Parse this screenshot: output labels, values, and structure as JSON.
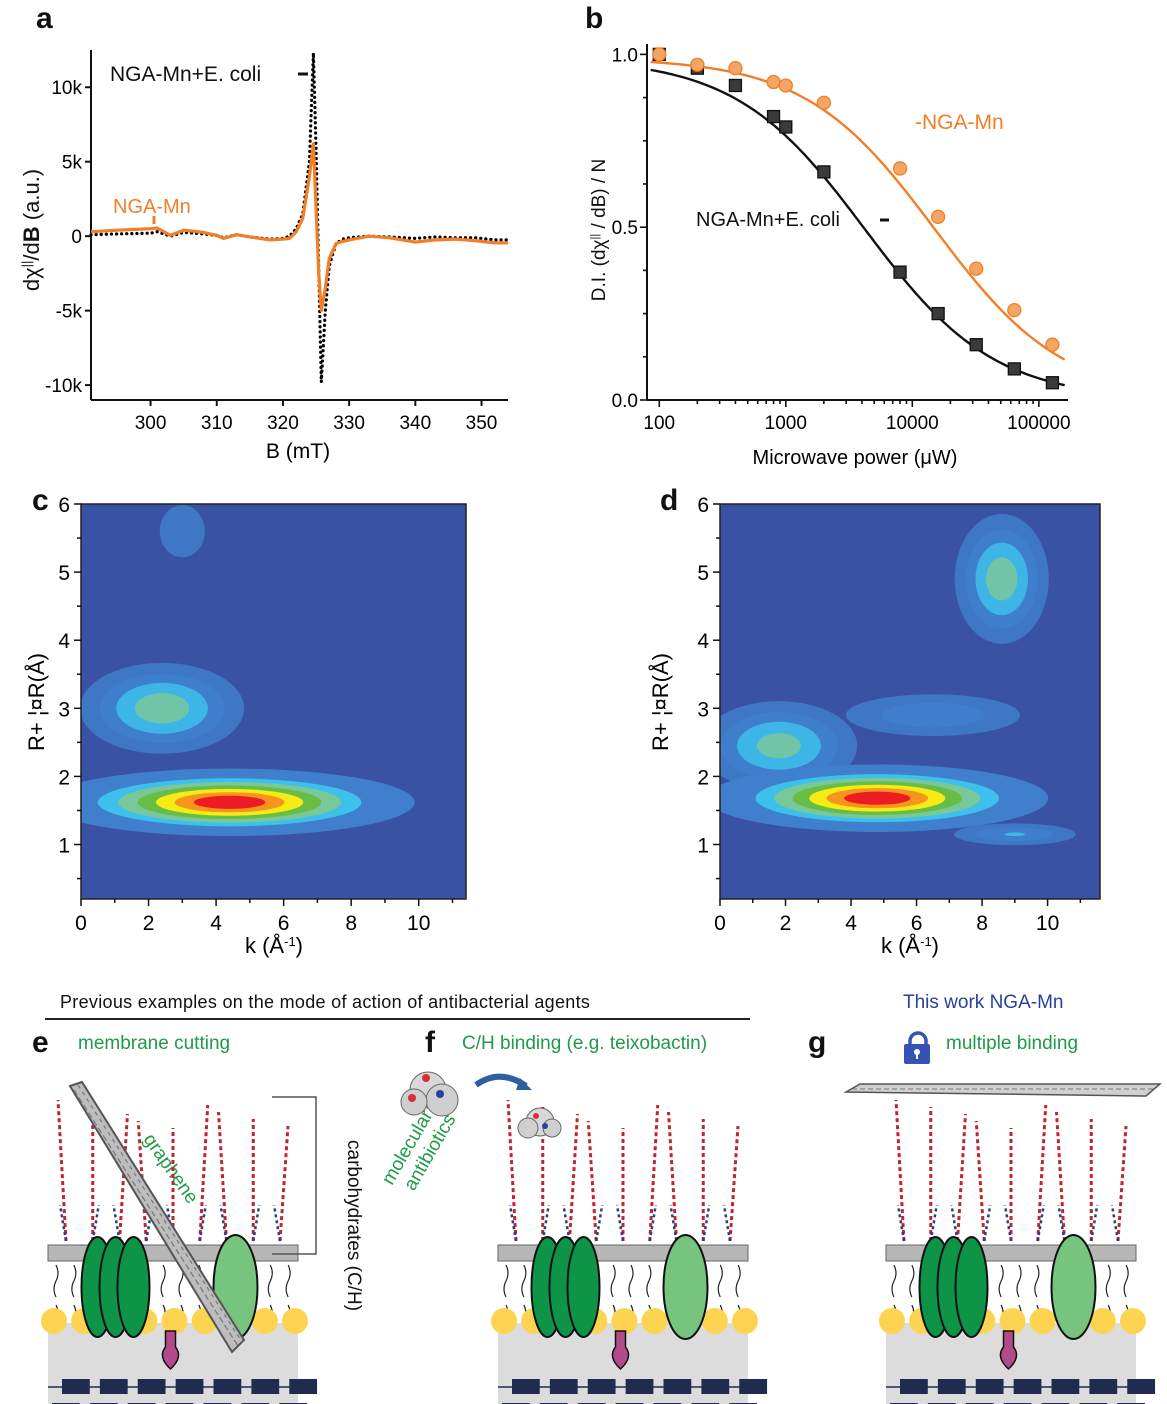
{
  "panels": {
    "a": "a",
    "b": "b",
    "c": "c",
    "d": "d",
    "e": "e",
    "f": "f",
    "g": "g"
  },
  "chart_data": [
    {
      "id": "a",
      "type": "line",
      "title": "",
      "xlabel": "B (mT)",
      "ylabel": "dχ||/dB (a.u.)",
      "xlim": [
        291,
        354
      ],
      "ylim": [
        -11000,
        12500
      ],
      "xticks": [
        300,
        310,
        320,
        330,
        340,
        350
      ],
      "xtick_labels": [
        "300",
        "310",
        "320",
        "330",
        "340",
        "350"
      ],
      "yticks": [
        -10000,
        -5000,
        0,
        5000,
        10000
      ],
      "ytick_labels": [
        "-10k",
        "-5k",
        "0",
        "5k",
        "10k"
      ],
      "series": [
        {
          "name": "NGA-Mn+E. coli",
          "label": "NGA-Mn+E. coli",
          "style": "dotted",
          "color": "#000000",
          "x": [
            291,
            295,
            300,
            301,
            303,
            305,
            308,
            310,
            311,
            313,
            315,
            318,
            320,
            321,
            322,
            323,
            324,
            324.6,
            325,
            325.4,
            325.8,
            326.4,
            327,
            328,
            329,
            330,
            333,
            336,
            340,
            343,
            346,
            349,
            352,
            354
          ],
          "y": [
            100,
            150,
            200,
            300,
            0,
            250,
            150,
            50,
            -100,
            100,
            -50,
            -200,
            -150,
            0,
            500,
            1500,
            5000,
            12300,
            6000,
            -2000,
            -9800,
            -5000,
            -2000,
            -500,
            -200,
            -100,
            0,
            -50,
            -150,
            -50,
            -100,
            -100,
            -250,
            -250
          ]
        },
        {
          "name": "NGA-Mn",
          "label": "NGA-Mn",
          "style": "solid",
          "color": "#f07f28",
          "x": [
            291,
            295,
            300,
            301,
            303,
            305,
            308,
            310,
            311,
            313,
            315,
            318,
            320,
            321,
            322,
            323,
            324,
            324.6,
            325,
            325.4,
            325.8,
            326.4,
            327,
            328,
            329,
            330,
            333,
            336,
            340,
            343,
            346,
            349,
            352,
            354
          ],
          "y": [
            300,
            400,
            500,
            550,
            50,
            400,
            250,
            50,
            -150,
            100,
            -50,
            -250,
            -200,
            -150,
            300,
            1200,
            4000,
            6200,
            2000,
            -2500,
            -5000,
            -3500,
            -1500,
            -500,
            -350,
            -250,
            0,
            -100,
            -400,
            -250,
            -200,
            -300,
            -450,
            -450
          ]
        }
      ]
    },
    {
      "id": "b",
      "type": "scatter",
      "title": "",
      "xlabel": "Microwave power (μW)",
      "ylabel": "D.I. (dχ|| / dB) / N",
      "xscale": "log",
      "xlim": [
        80,
        170000
      ],
      "ylim": [
        0,
        1.03
      ],
      "xticks": [
        100,
        1000,
        10000,
        100000
      ],
      "xtick_labels": [
        "100",
        "1000",
        "10000",
        "100000"
      ],
      "yticks": [
        0,
        0.5,
        1.0
      ],
      "ytick_labels": [
        "0.0",
        "0.5",
        "1.0"
      ],
      "series": [
        {
          "name": "NGA-Mn",
          "label": "-NGA-Mn",
          "marker": "circle",
          "color": "#f07f28",
          "fill": "#f5a563",
          "x": [
            100,
            200,
            400,
            800,
            1000,
            2000,
            8000,
            16000,
            32000,
            64000,
            128000
          ],
          "y": [
            1.0,
            0.97,
            0.96,
            0.92,
            0.91,
            0.86,
            0.67,
            0.53,
            0.38,
            0.26,
            0.16
          ],
          "fit": {
            "x0": 15000,
            "slope": 0.85,
            "top": 0.99
          }
        },
        {
          "name": "NGA-Mn+E. coli",
          "label": "NGA-Mn+E. coli",
          "marker": "square",
          "color": "#000000",
          "fill": "#3a3a3a",
          "x": [
            100,
            200,
            400,
            800,
            1000,
            2000,
            8000,
            16000,
            32000,
            64000,
            128000
          ],
          "y": [
            1.0,
            0.96,
            0.91,
            0.82,
            0.79,
            0.66,
            0.37,
            0.25,
            0.16,
            0.09,
            0.05
          ],
          "fit": {
            "x0": 4200,
            "slope": 0.85,
            "top": 0.99
          }
        }
      ]
    },
    {
      "id": "c",
      "type": "heatmap",
      "title": "",
      "xlabel": "k (Å-1)",
      "ylabel": "R+ ¦¤R(Å)",
      "xlim": [
        0,
        11.4
      ],
      "ylim": [
        0.2,
        6
      ],
      "xticks": [
        0,
        2,
        4,
        6,
        8,
        10
      ],
      "xtick_labels": [
        "0",
        "2",
        "4",
        "6",
        "8",
        "10"
      ],
      "yticks": [
        1,
        2,
        3,
        4,
        5,
        6
      ],
      "ytick_labels": [
        "1",
        "2",
        "3",
        "4",
        "5",
        "6"
      ],
      "colormap": [
        "#3a52a3",
        "#3f7fcb",
        "#3dc0ec",
        "#78c89a",
        "#68bd45",
        "#f6eb14",
        "#f7941d",
        "#ed1c24"
      ],
      "features": [
        {
          "k": 4.4,
          "R": 1.62,
          "sk": 4.2,
          "sR": 0.22,
          "amp": 1.0
        },
        {
          "k": 2.4,
          "R": 3.0,
          "sk": 2.2,
          "sR": 0.35,
          "amp": 0.45
        },
        {
          "k": 3.0,
          "R": 5.6,
          "sk": 1.2,
          "sR": 0.4,
          "amp": 0.1
        }
      ]
    },
    {
      "id": "d",
      "type": "heatmap",
      "title": "",
      "xlabel": "k (Å-1)",
      "ylabel": "R+ ¦¤R(Å)",
      "xlim": [
        0,
        11.6
      ],
      "ylim": [
        0.2,
        6
      ],
      "xticks": [
        0,
        2,
        4,
        6,
        8,
        10
      ],
      "xtick_labels": [
        "0",
        "2",
        "4",
        "6",
        "8",
        "10"
      ],
      "yticks": [
        1,
        2,
        3,
        4,
        5,
        6
      ],
      "ytick_labels": [
        "1",
        "2",
        "3",
        "4",
        "5",
        "6"
      ],
      "colormap": [
        "#3a52a3",
        "#3f7fcb",
        "#3dc0ec",
        "#78c89a",
        "#68bd45",
        "#f6eb14",
        "#f7941d",
        "#ed1c24"
      ],
      "features": [
        {
          "k": 4.8,
          "R": 1.68,
          "sk": 4.0,
          "sR": 0.22,
          "amp": 1.0
        },
        {
          "k": 1.8,
          "R": 2.45,
          "sk": 2.2,
          "sR": 0.35,
          "amp": 0.42
        },
        {
          "k": 8.6,
          "R": 4.9,
          "sk": 1.3,
          "sR": 0.5,
          "amp": 0.45
        },
        {
          "k": 6.5,
          "R": 2.9,
          "sk": 3.0,
          "sR": 0.2,
          "amp": 0.22
        },
        {
          "k": 9.0,
          "R": 1.15,
          "sk": 2.0,
          "sR": 0.1,
          "amp": 0.25
        }
      ]
    }
  ],
  "annotations": {
    "a_label_black": "NGA-Mn+E. coli",
    "a_label_orange": "NGA-Mn",
    "b_label_orange": "-NGA-Mn",
    "b_label_black": "NGA-Mn+E. coli"
  },
  "schematic": {
    "header": "Previous examples on the mode of action of antibacterial agents",
    "e": {
      "title": "membrane cutting",
      "agent": "graphene",
      "bracket_label": "carbohydrates (C/H)"
    },
    "f": {
      "title": "C/H binding (e.g. teixobactin)",
      "agent": "molecular antibiotics",
      "agent_line1": "molecular",
      "agent_line2": "antibiotics"
    },
    "g": {
      "headline": "This work NGA-Mn",
      "title": "multiple binding",
      "icon": "unlock-icon"
    },
    "colors": {
      "green_text": "#1f9a4a",
      "blue_text": "#2b3f9e",
      "protein_dark": "#0e9447",
      "protein_light": "#76c47d",
      "lipid_head": "#fdd451",
      "peptidoglycan": "#1f2b4f",
      "pink_protein": "#b34a8a",
      "chain_red": "#c0262d",
      "lock_blue": "#3853b8"
    }
  }
}
